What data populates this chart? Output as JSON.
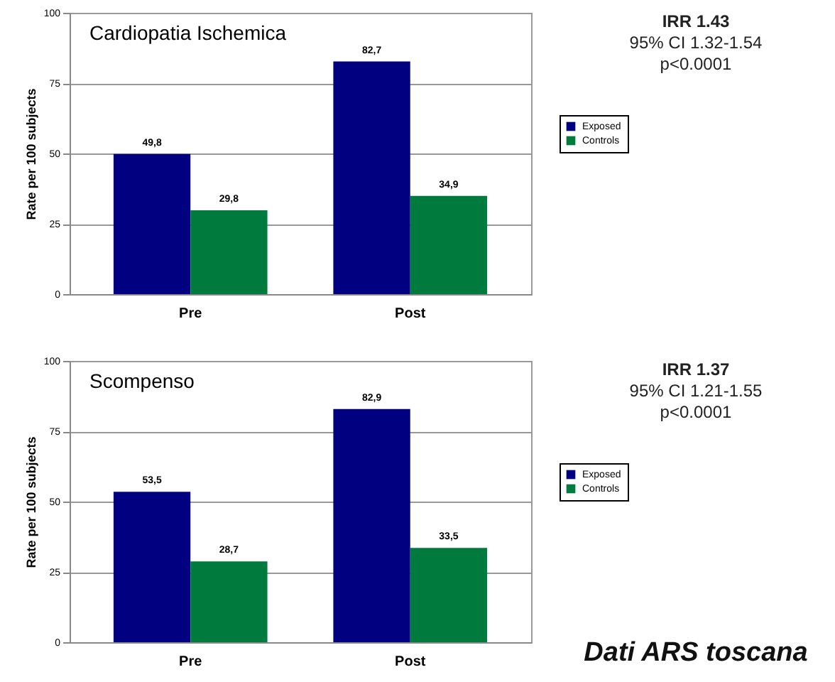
{
  "chart_data": [
    {
      "type": "bar",
      "title": "Cardiopatia Ischemica",
      "ylabel": "Rate per 100 subjects",
      "categories": [
        "Pre",
        "Post"
      ],
      "series": [
        {
          "name": "Exposed",
          "color": "#000080",
          "values": [
            49.8,
            82.7
          ],
          "value_labels": [
            "49,8",
            "82,7"
          ]
        },
        {
          "name": "Controls",
          "color": "#007a3d",
          "values": [
            29.8,
            34.9
          ],
          "value_labels": [
            "29,8",
            "34,9"
          ]
        }
      ],
      "ylim": [
        0,
        100
      ],
      "yticks": [
        0,
        25,
        50,
        75,
        100
      ],
      "grid": "y",
      "legend": "right",
      "annotations": [
        "IRR 1.43",
        "95% CI 1.32-1.54",
        "p<0.0001"
      ]
    },
    {
      "type": "bar",
      "title": "Scompenso",
      "ylabel": "Rate per 100 subjects",
      "categories": [
        "Pre",
        "Post"
      ],
      "series": [
        {
          "name": "Exposed",
          "color": "#000080",
          "values": [
            53.5,
            82.9
          ],
          "value_labels": [
            "53,5",
            "82,9"
          ]
        },
        {
          "name": "Controls",
          "color": "#007a3d",
          "values": [
            28.7,
            33.5
          ],
          "value_labels": [
            "28,7",
            "33,5"
          ]
        }
      ],
      "ylim": [
        0,
        100
      ],
      "yticks": [
        0,
        25,
        50,
        75,
        100
      ],
      "grid": "y",
      "legend": "right",
      "annotations": [
        "IRR 1.37",
        "95% CI 1.21-1.55",
        "p<0.0001",
        "Dati ARS toscana"
      ]
    }
  ]
}
